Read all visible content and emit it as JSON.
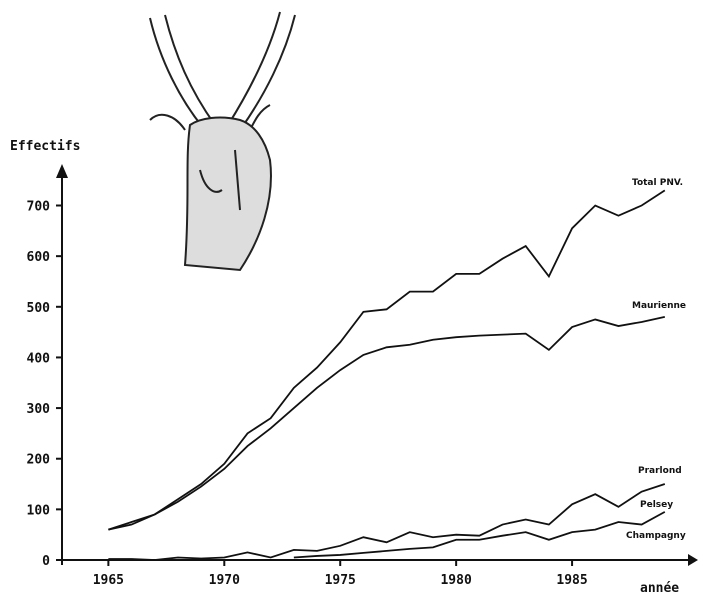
{
  "chart_data": {
    "type": "line",
    "y_label": "Effectifs",
    "x_label": "année",
    "x": [
      1965,
      1966,
      1967,
      1968,
      1969,
      1970,
      1971,
      1972,
      1973,
      1974,
      1975,
      1976,
      1977,
      1978,
      1979,
      1980,
      1981,
      1982,
      1983,
      1984,
      1985,
      1986,
      1987,
      1988,
      1989
    ],
    "xlim": [
      1963,
      1990
    ],
    "xticks": [
      1965,
      1970,
      1975,
      1980,
      1985
    ],
    "ylim": [
      0,
      780
    ],
    "yticks": [
      0,
      100,
      200,
      300,
      400,
      500,
      600,
      700
    ],
    "series": [
      {
        "name": "Total PNV.",
        "color": "#111111",
        "values": [
          60,
          75,
          90,
          120,
          150,
          190,
          250,
          280,
          340,
          380,
          430,
          490,
          495,
          530,
          530,
          565,
          565,
          595,
          620,
          560,
          655,
          700,
          680,
          700,
          730
        ]
      },
      {
        "name": "Maurienne",
        "color": "#111111",
        "values": [
          60,
          70,
          90,
          115,
          145,
          180,
          225,
          260,
          300,
          340,
          375,
          405,
          420,
          425,
          435,
          440,
          443,
          445,
          447,
          415,
          460,
          475,
          462,
          470,
          480
        ]
      },
      {
        "name": "Prarlond",
        "color": "#111111",
        "values": [
          2,
          2,
          0,
          5,
          3,
          5,
          15,
          5,
          20,
          18,
          28,
          45,
          35,
          55,
          45,
          50,
          48,
          70,
          80,
          70,
          110,
          130,
          105,
          135,
          150
        ]
      },
      {
        "name": "Pelsey",
        "color": "#111111",
        "values": [
          null,
          null,
          null,
          null,
          null,
          null,
          null,
          null,
          5,
          8,
          10,
          14,
          18,
          22,
          25,
          40,
          40,
          48,
          55,
          40,
          55,
          60,
          75,
          70,
          95
        ]
      },
      {
        "name": "Champagny",
        "color": "#111111",
        "values": [
          null,
          null,
          null,
          null,
          null,
          null,
          null,
          null,
          null,
          null,
          null,
          null,
          null,
          null,
          null,
          null,
          null,
          null,
          null,
          null,
          null,
          null,
          null,
          null,
          null
        ]
      }
    ]
  }
}
